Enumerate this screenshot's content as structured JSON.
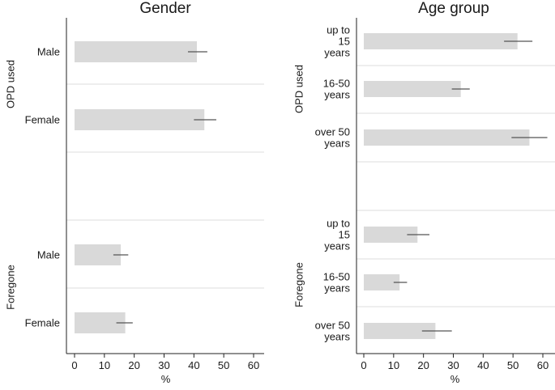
{
  "chart_data": [
    {
      "type": "bar",
      "orientation": "horizontal",
      "title": "Gender",
      "xlabel": "%",
      "xlim": [
        0,
        60
      ],
      "xticks": [
        0,
        10,
        20,
        30,
        40,
        50,
        60
      ],
      "groups": [
        {
          "name": "OPD used",
          "categories": [
            {
              "label": [
                "Male"
              ],
              "value": 41,
              "ci": [
                38,
                44.5
              ]
            },
            {
              "label": [
                "Female"
              ],
              "value": 43.5,
              "ci": [
                40,
                47.5
              ]
            }
          ]
        },
        {
          "name": "Foregone",
          "categories": [
            {
              "label": [
                "Male"
              ],
              "value": 15.5,
              "ci": [
                13,
                18
              ]
            },
            {
              "label": [
                "Female"
              ],
              "value": 17,
              "ci": [
                14,
                19.5
              ]
            }
          ]
        }
      ]
    },
    {
      "type": "bar",
      "orientation": "horizontal",
      "title": "Age group",
      "xlabel": "%",
      "xlim": [
        0,
        60
      ],
      "xticks": [
        0,
        10,
        20,
        30,
        40,
        50,
        60
      ],
      "groups": [
        {
          "name": "OPD used",
          "categories": [
            {
              "label": [
                "up to",
                "15",
                "years"
              ],
              "value": 51.5,
              "ci": [
                47,
                56.5
              ]
            },
            {
              "label": [
                "16-50",
                "years"
              ],
              "value": 32.5,
              "ci": [
                29.5,
                35.5
              ]
            },
            {
              "label": [
                "over 50",
                "years"
              ],
              "value": 55.5,
              "ci": [
                49.5,
                61.5
              ]
            }
          ]
        },
        {
          "name": "Foregone",
          "categories": [
            {
              "label": [
                "up to",
                "15",
                "years"
              ],
              "value": 18,
              "ci": [
                14.5,
                22
              ]
            },
            {
              "label": [
                "16-50",
                "years"
              ],
              "value": 12,
              "ci": [
                10,
                14.5
              ]
            },
            {
              "label": [
                "over 50",
                "years"
              ],
              "value": 24,
              "ci": [
                19.5,
                29.5
              ]
            }
          ]
        }
      ]
    }
  ],
  "colors": {
    "bar_fill": "#d9d9d9",
    "error_bar": "#555555",
    "axis": "#222222",
    "separator": "#dcdcdc"
  }
}
